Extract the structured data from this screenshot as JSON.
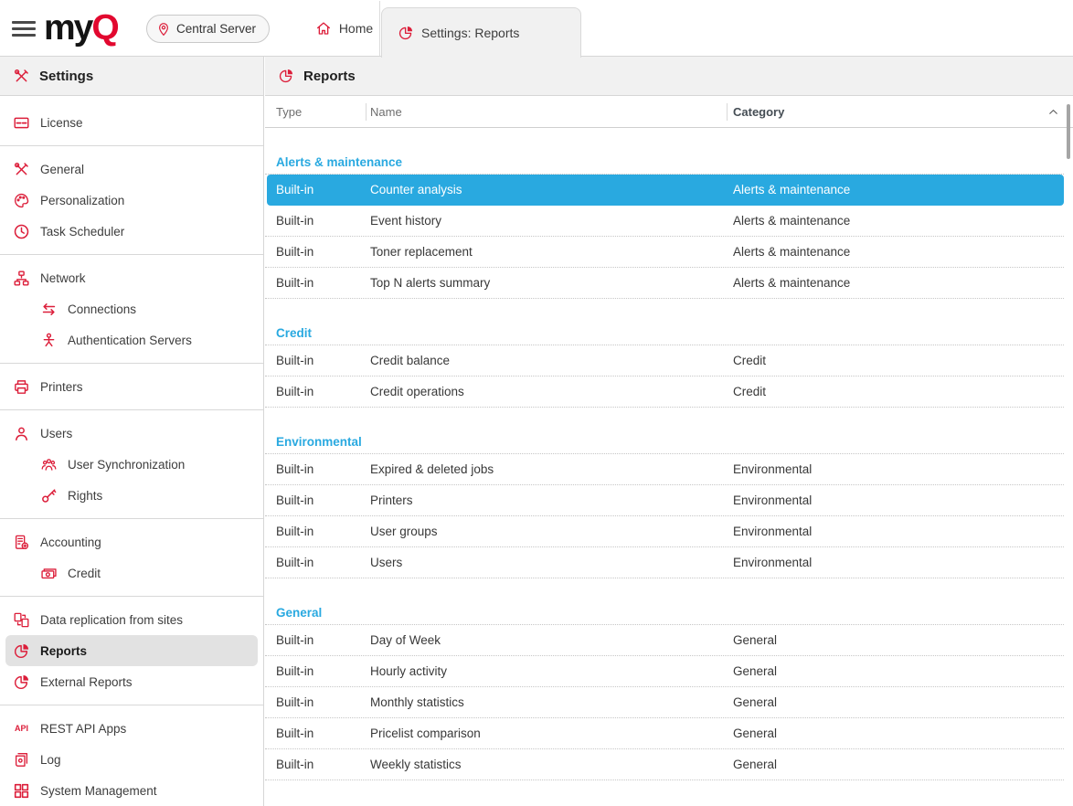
{
  "topbar": {
    "logo": {
      "prefix": "my",
      "suffix": "Q"
    },
    "server_button": {
      "label": "Central Server",
      "icon": "location-pin-icon"
    },
    "tabs": [
      {
        "label": "Home",
        "icon": "home-icon",
        "active": false
      },
      {
        "label": "Settings: Reports",
        "icon": "pie-chart-icon",
        "active": true
      }
    ]
  },
  "sidebar": {
    "header": {
      "label": "Settings",
      "icon": "tools-icon"
    },
    "items": [
      {
        "type": "item",
        "label": "License",
        "icon": "license-card-icon"
      },
      {
        "type": "divider"
      },
      {
        "type": "item",
        "label": "General",
        "icon": "tools-icon"
      },
      {
        "type": "item",
        "label": "Personalization",
        "icon": "palette-icon"
      },
      {
        "type": "item",
        "label": "Task Scheduler",
        "icon": "clock-icon"
      },
      {
        "type": "divider"
      },
      {
        "type": "item",
        "label": "Network",
        "icon": "network-icon"
      },
      {
        "type": "item",
        "label": "Connections",
        "icon": "swap-arrows-icon",
        "indent": true
      },
      {
        "type": "item",
        "label": "Authentication Servers",
        "icon": "auth-person-icon",
        "indent": true
      },
      {
        "type": "divider"
      },
      {
        "type": "item",
        "label": "Printers",
        "icon": "printer-icon"
      },
      {
        "type": "divider"
      },
      {
        "type": "item",
        "label": "Users",
        "icon": "user-icon"
      },
      {
        "type": "item",
        "label": "User Synchronization",
        "icon": "users-group-icon",
        "indent": true
      },
      {
        "type": "item",
        "label": "Rights",
        "icon": "key-icon",
        "indent": true
      },
      {
        "type": "divider"
      },
      {
        "type": "item",
        "label": "Accounting",
        "icon": "calculator-icon"
      },
      {
        "type": "item",
        "label": "Credit",
        "icon": "money-icon",
        "indent": true
      },
      {
        "type": "divider"
      },
      {
        "type": "item",
        "label": "Data replication from sites",
        "icon": "data-replication-icon"
      },
      {
        "type": "item",
        "label": "Reports",
        "icon": "pie-chart-icon",
        "selected": true
      },
      {
        "type": "item",
        "label": "External Reports",
        "icon": "pie-chart-icon"
      },
      {
        "type": "divider"
      },
      {
        "type": "item",
        "label": "REST API Apps",
        "icon": "api-icon"
      },
      {
        "type": "item",
        "label": "Log",
        "icon": "log-scroll-icon"
      },
      {
        "type": "item",
        "label": "System Management",
        "icon": "grid-icon"
      }
    ]
  },
  "main": {
    "header": {
      "title": "Reports",
      "icon": "pie-chart-icon"
    },
    "table": {
      "columns": [
        {
          "label": "Type",
          "sorted": false
        },
        {
          "label": "Name",
          "sorted": false
        },
        {
          "label": "Category",
          "sorted": true,
          "sort_dir": "asc"
        }
      ],
      "groups": [
        {
          "name": "Alerts & maintenance",
          "rows": [
            {
              "type": "Built-in",
              "name": "Counter analysis",
              "category": "Alerts & maintenance",
              "selected": true
            },
            {
              "type": "Built-in",
              "name": "Event history",
              "category": "Alerts & maintenance"
            },
            {
              "type": "Built-in",
              "name": "Toner replacement",
              "category": "Alerts & maintenance"
            },
            {
              "type": "Built-in",
              "name": "Top N alerts summary",
              "category": "Alerts & maintenance"
            }
          ]
        },
        {
          "name": "Credit",
          "rows": [
            {
              "type": "Built-in",
              "name": "Credit balance",
              "category": "Credit"
            },
            {
              "type": "Built-in",
              "name": "Credit operations",
              "category": "Credit"
            }
          ]
        },
        {
          "name": "Environmental",
          "rows": [
            {
              "type": "Built-in",
              "name": "Expired & deleted jobs",
              "category": "Environmental"
            },
            {
              "type": "Built-in",
              "name": "Printers",
              "category": "Environmental"
            },
            {
              "type": "Built-in",
              "name": "User groups",
              "category": "Environmental"
            },
            {
              "type": "Built-in",
              "name": "Users",
              "category": "Environmental"
            }
          ]
        },
        {
          "name": "General",
          "rows": [
            {
              "type": "Built-in",
              "name": "Day of Week",
              "category": "General"
            },
            {
              "type": "Built-in",
              "name": "Hourly activity",
              "category": "General"
            },
            {
              "type": "Built-in",
              "name": "Monthly statistics",
              "category": "General"
            },
            {
              "type": "Built-in",
              "name": "Pricelist comparison",
              "category": "General"
            },
            {
              "type": "Built-in",
              "name": "Weekly statistics",
              "category": "General"
            }
          ]
        }
      ]
    }
  },
  "colors": {
    "accent_red": "#dc1e3a",
    "logo_red": "#e2082f",
    "selection_blue": "#29a9e0",
    "group_header_blue": "#29a9e0",
    "header_bg": "#f1f1f1",
    "sidebar_selected_bg": "#e2e2e2"
  }
}
